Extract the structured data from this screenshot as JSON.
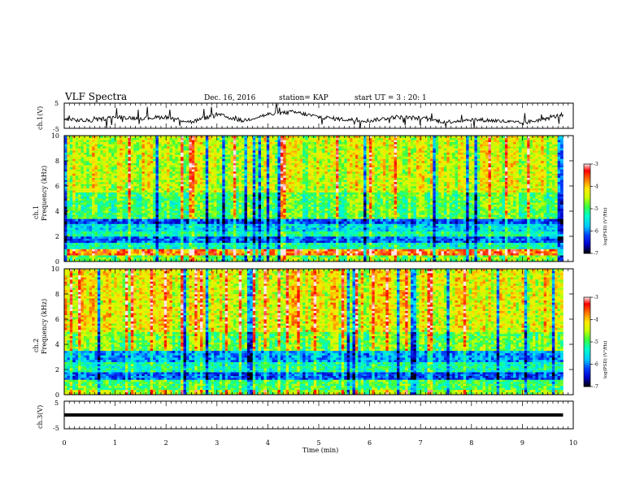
{
  "header": {
    "title": "VLF Spectra",
    "date": "Dec. 16, 2016",
    "station": "station= KAP",
    "start": "start UT =  3 : 20: 1"
  },
  "colors": {
    "colormap": [
      "#ffffff",
      "#ff9999",
      "#ff0000",
      "#ffaa00",
      "#ffff00",
      "#00ff00",
      "#00ffff",
      "#0080ff",
      "#0000ff",
      "#000000"
    ],
    "trace": "#000000",
    "axes": "#000000"
  },
  "chart_data": [
    {
      "type": "line",
      "name": "ch1-waveform",
      "ylabel": "ch.1(V)",
      "ylim": [
        -5,
        5
      ],
      "yticks": [
        "5",
        "-5"
      ],
      "xlim": [
        0,
        10
      ],
      "x": [
        0.0,
        0.5,
        1.0,
        1.5,
        2.0,
        2.5,
        3.0,
        3.5,
        4.0,
        4.5,
        5.0,
        5.5,
        6.0,
        6.5,
        7.0,
        7.5,
        8.0,
        8.5,
        9.0,
        9.5,
        9.8
      ],
      "y": [
        -1.5,
        -2.0,
        -0.5,
        -1.0,
        -0.5,
        -2.5,
        0.5,
        -2.0,
        0.5,
        1.5,
        -0.5,
        -1.5,
        -2.0,
        -0.5,
        -1.0,
        -2.5,
        -1.5,
        -2.0,
        -3.0,
        -1.0,
        0.5
      ]
    },
    {
      "type": "heatmap",
      "name": "ch1-spectrogram",
      "ylabel": "ch.1\nFrequency (kHz)",
      "yticks": [
        "0",
        "2",
        "4",
        "6",
        "8",
        "10"
      ],
      "ylim": [
        0,
        10
      ],
      "xlim": [
        0,
        10
      ],
      "colorbar": {
        "label": "log(PSD) (V²/Hz)",
        "range": [
          -7,
          -3
        ],
        "ticks": [
          "-3",
          "-4",
          "-5",
          "-6",
          "-7"
        ]
      },
      "bands_khz": [
        {
          "from": 0.0,
          "to": 0.5,
          "level": -4.8
        },
        {
          "from": 0.5,
          "to": 1.0,
          "level": -3.6
        },
        {
          "from": 1.0,
          "to": 1.5,
          "level": -5.3
        },
        {
          "from": 1.5,
          "to": 2.0,
          "level": -6.1
        },
        {
          "from": 2.0,
          "to": 2.4,
          "level": -5.2
        },
        {
          "from": 2.4,
          "to": 3.0,
          "level": -5.6
        },
        {
          "from": 3.0,
          "to": 3.4,
          "level": -6.2
        },
        {
          "from": 3.4,
          "to": 5.5,
          "level": -4.9
        },
        {
          "from": 5.5,
          "to": 10.0,
          "level": -4.4
        }
      ]
    },
    {
      "type": "heatmap",
      "name": "ch2-spectrogram",
      "ylabel": "ch.2\nFrequency (kHz)",
      "yticks": [
        "0",
        "2",
        "4",
        "6",
        "8",
        "10"
      ],
      "ylim": [
        0,
        10
      ],
      "xlim": [
        0,
        10
      ],
      "colorbar": {
        "label": "log(PSD) (V²/Hz)",
        "range": [
          -7,
          -3
        ],
        "ticks": [
          "-3",
          "-4",
          "-5",
          "-6",
          "-7"
        ]
      },
      "bands_khz": [
        {
          "from": 0.0,
          "to": 0.4,
          "level": -4.6
        },
        {
          "from": 0.4,
          "to": 1.2,
          "level": -5.0
        },
        {
          "from": 1.2,
          "to": 1.8,
          "level": -6.2
        },
        {
          "from": 1.8,
          "to": 2.6,
          "level": -5.3
        },
        {
          "from": 2.6,
          "to": 3.5,
          "level": -5.9
        },
        {
          "from": 3.5,
          "to": 5.0,
          "level": -4.8
        },
        {
          "from": 5.0,
          "to": 10.0,
          "level": -4.3
        }
      ]
    },
    {
      "type": "line",
      "name": "ch3-waveform",
      "ylabel": "ch.3(V)",
      "ylim": [
        -5,
        5
      ],
      "yticks": [
        "5",
        "-5"
      ],
      "xlim": [
        0,
        10
      ],
      "x": [
        0.0,
        9.8
      ],
      "y": [
        0.0,
        0.0
      ]
    }
  ],
  "xaxis": {
    "label": "Time (min)",
    "ticks": [
      "0",
      "1",
      "2",
      "3",
      "4",
      "5",
      "6",
      "7",
      "8",
      "9",
      "10"
    ],
    "range": [
      0,
      10
    ]
  }
}
